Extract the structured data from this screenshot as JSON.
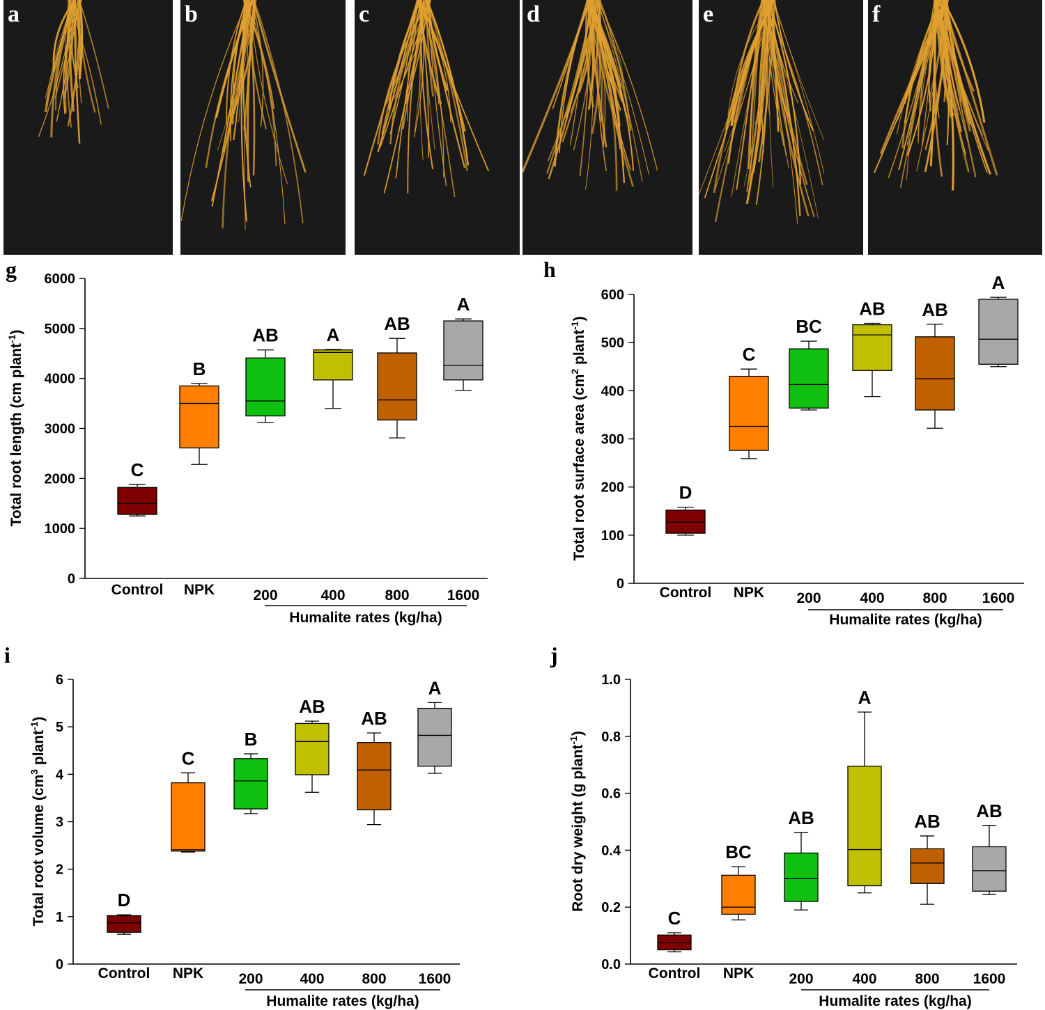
{
  "photo_panels": [
    {
      "letter": "a"
    },
    {
      "letter": "b"
    },
    {
      "letter": "c"
    },
    {
      "letter": "d"
    },
    {
      "letter": "e"
    },
    {
      "letter": "f"
    }
  ],
  "colors": {
    "Control": "#7f0000",
    "NPK": "#ff8000",
    "200": "#10c010",
    "400": "#c0c000",
    "800": "#c06000",
    "1600": "#a8a8a8",
    "photo_background": "#1a1a1a",
    "root": "#e0a030"
  },
  "chart_data": [
    {
      "panel": "g",
      "type": "box",
      "ylabel": "Total root length (cm plant",
      "ylabel_sup": "-1",
      "ylabel_end": ")",
      "xgroup_label": "Humalite rates (kg/ha)",
      "categories": [
        "Control",
        "NPK",
        "200",
        "400",
        "800",
        "1600"
      ],
      "ylim": [
        0,
        6000
      ],
      "yticks": [
        0,
        1000,
        2000,
        3000,
        4000,
        5000,
        6000
      ],
      "ytick_labels": [
        "0",
        "1000",
        "2000",
        "3000",
        "4000",
        "5000",
        "6000"
      ],
      "boxes": [
        {
          "min": 1250,
          "q1": 1280,
          "median": 1500,
          "q3": 1820,
          "max": 1880,
          "letter": "C"
        },
        {
          "min": 2280,
          "q1": 2610,
          "median": 3500,
          "q3": 3850,
          "max": 3900,
          "letter": "B"
        },
        {
          "min": 3120,
          "q1": 3250,
          "median": 3550,
          "q3": 4410,
          "max": 4570,
          "letter": "AB"
        },
        {
          "min": 3400,
          "q1": 3970,
          "median": 4520,
          "q3": 4570,
          "max": 4580,
          "letter": "A"
        },
        {
          "min": 2810,
          "q1": 3170,
          "median": 3570,
          "q3": 4510,
          "max": 4800,
          "letter": "AB"
        },
        {
          "min": 3760,
          "q1": 3970,
          "median": 4260,
          "q3": 5150,
          "max": 5190,
          "letter": "A"
        }
      ]
    },
    {
      "panel": "h",
      "type": "box",
      "ylabel": "Total root surface area (cm",
      "ylabel_sup": "2",
      "ylabel_end": " plant",
      "ylabel_sup2": "-1",
      "ylabel_end2": ")",
      "xgroup_label": "Humalite rates (kg/ha)",
      "categories": [
        "Control",
        "NPK",
        "200",
        "400",
        "800",
        "1600"
      ],
      "ylim": [
        0,
        600
      ],
      "yticks": [
        0,
        100,
        200,
        300,
        400,
        500,
        600
      ],
      "ytick_labels": [
        "0",
        "100",
        "200",
        "300",
        "400",
        "500",
        "600"
      ],
      "boxes": [
        {
          "min": 100,
          "q1": 104,
          "median": 127,
          "q3": 152,
          "max": 158,
          "letter": "D"
        },
        {
          "min": 259,
          "q1": 276,
          "median": 326,
          "q3": 430,
          "max": 445,
          "letter": "C"
        },
        {
          "min": 360,
          "q1": 364,
          "median": 413,
          "q3": 487,
          "max": 503,
          "letter": "BC"
        },
        {
          "min": 388,
          "q1": 442,
          "median": 516,
          "q3": 537,
          "max": 540,
          "letter": "AB"
        },
        {
          "min": 322,
          "q1": 360,
          "median": 425,
          "q3": 512,
          "max": 538,
          "letter": "AB"
        },
        {
          "min": 450,
          "q1": 455,
          "median": 507,
          "q3": 590,
          "max": 594,
          "letter": "A"
        }
      ]
    },
    {
      "panel": "i",
      "type": "box",
      "ylabel": "Total root volume (cm",
      "ylabel_sup": "3",
      "ylabel_end": " plant",
      "ylabel_sup2": "-1",
      "ylabel_end2": ")",
      "xgroup_label": "Humalite rates (kg/ha)",
      "categories": [
        "Control",
        "NPK",
        "200",
        "400",
        "800",
        "1600"
      ],
      "ylim": [
        0,
        6
      ],
      "yticks": [
        0,
        1,
        2,
        3,
        4,
        5,
        6
      ],
      "ytick_labels": [
        "0",
        "1",
        "2",
        "3",
        "4",
        "5",
        "6"
      ],
      "boxes": [
        {
          "min": 0.63,
          "q1": 0.67,
          "median": 0.87,
          "q3": 1.02,
          "max": 1.04,
          "letter": "D"
        },
        {
          "min": 2.36,
          "q1": 2.38,
          "median": 2.41,
          "q3": 3.82,
          "max": 4.03,
          "letter": "C"
        },
        {
          "min": 3.17,
          "q1": 3.27,
          "median": 3.86,
          "q3": 4.33,
          "max": 4.43,
          "letter": "B"
        },
        {
          "min": 3.62,
          "q1": 3.99,
          "median": 4.69,
          "q3": 5.07,
          "max": 5.12,
          "letter": "AB"
        },
        {
          "min": 2.94,
          "q1": 3.25,
          "median": 4.09,
          "q3": 4.67,
          "max": 4.87,
          "letter": "AB"
        },
        {
          "min": 4.02,
          "q1": 4.17,
          "median": 4.82,
          "q3": 5.39,
          "max": 5.51,
          "letter": "A"
        }
      ]
    },
    {
      "panel": "j",
      "type": "box",
      "ylabel": "Root dry weight (g plant",
      "ylabel_sup": "-1",
      "ylabel_end": ")",
      "xgroup_label": "Humalite rates (kg/ha)",
      "categories": [
        "Control",
        "NPK",
        "200",
        "400",
        "800",
        "1600"
      ],
      "ylim": [
        0,
        1.0
      ],
      "yticks": [
        0,
        0.2,
        0.4,
        0.6,
        0.8,
        1.0
      ],
      "ytick_labels": [
        "0.0",
        "0.2",
        "0.4",
        "0.6",
        "0.8",
        "1.0"
      ],
      "boxes": [
        {
          "min": 0.043,
          "q1": 0.05,
          "median": 0.075,
          "q3": 0.102,
          "max": 0.11,
          "letter": "C"
        },
        {
          "min": 0.155,
          "q1": 0.175,
          "median": 0.2,
          "q3": 0.312,
          "max": 0.342,
          "letter": "BC"
        },
        {
          "min": 0.19,
          "q1": 0.22,
          "median": 0.3,
          "q3": 0.39,
          "max": 0.462,
          "letter": "AB"
        },
        {
          "min": 0.25,
          "q1": 0.275,
          "median": 0.402,
          "q3": 0.695,
          "max": 0.885,
          "letter": "A"
        },
        {
          "min": 0.21,
          "q1": 0.283,
          "median": 0.355,
          "q3": 0.405,
          "max": 0.45,
          "letter": "AB"
        },
        {
          "min": 0.245,
          "q1": 0.256,
          "median": 0.328,
          "q3": 0.412,
          "max": 0.487,
          "letter": "AB"
        }
      ]
    }
  ]
}
